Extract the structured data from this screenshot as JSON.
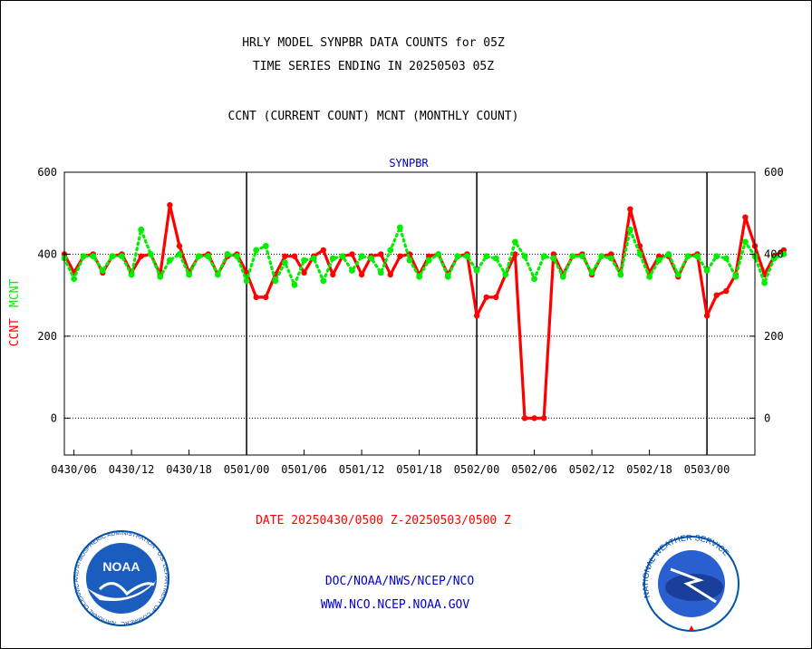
{
  "chart_data": {
    "type": "line",
    "title_lines": [
      "HRLY MODEL SYNPBR DATA COUNTS for 05Z",
      "TIME SERIES ENDING IN 20250503 05Z"
    ],
    "subtitle": "CCNT (CURRENT COUNT) MCNT (MONTHLY COUNT)",
    "panel_label": "SYNPBR",
    "ylabel_parts": [
      {
        "text": "CCNT",
        "color": "#ff0000"
      },
      {
        "text": "MCNT",
        "color": "#00ee00"
      }
    ],
    "xlabel": "DATE 20250430/0500 Z-20250503/0500 Z",
    "x_start": "2025-04-30 05Z",
    "x_end": "2025-05-03 05Z",
    "xlim_hours": [
      0,
      72
    ],
    "ylim": [
      -90,
      600
    ],
    "y_ticks": [
      0,
      200,
      400,
      600
    ],
    "x_tick_labels": [
      "0430/06",
      "0430/12",
      "0430/18",
      "0501/00",
      "0501/06",
      "0501/12",
      "0501/18",
      "0502/00",
      "0502/06",
      "0502/12",
      "0502/18",
      "0503/00"
    ],
    "grid": "dotted horizontal at 0, 200, 400; solid vertical at day boundaries",
    "series": [
      {
        "name": "CCNT",
        "color": "#ff0000",
        "values": [
          400,
          355,
          395,
          400,
          355,
          395,
          400,
          355,
          395,
          400,
          350,
          520,
          420,
          355,
          395,
          400,
          350,
          395,
          400,
          355,
          295,
          295,
          350,
          395,
          395,
          355,
          395,
          410,
          350,
          395,
          400,
          350,
          395,
          400,
          350,
          395,
          400,
          350,
          395,
          400,
          350,
          395,
          400,
          250,
          295,
          295,
          350,
          400,
          0,
          0,
          0,
          400,
          350,
          395,
          400,
          350,
          395,
          400,
          350,
          510,
          420,
          355,
          395,
          395,
          345,
          395,
          400,
          250,
          300,
          310,
          350,
          490,
          420,
          350,
          395,
          410
        ]
      },
      {
        "name": "MCNT",
        "color": "#00ee00",
        "values": [
          390,
          340,
          395,
          395,
          360,
          395,
          395,
          350,
          460,
          400,
          345,
          385,
          400,
          350,
          395,
          395,
          350,
          400,
          395,
          335,
          410,
          420,
          335,
          380,
          325,
          385,
          390,
          335,
          390,
          395,
          360,
          395,
          390,
          355,
          410,
          465,
          385,
          345,
          385,
          400,
          345,
          395,
          395,
          360,
          395,
          390,
          350,
          430,
          395,
          340,
          395,
          390,
          345,
          395,
          395,
          355,
          395,
          390,
          350,
          460,
          400,
          345,
          385,
          400,
          350,
          395,
          395,
          360,
          395,
          390,
          345,
          430,
          395,
          330,
          390,
          400
        ]
      }
    ]
  },
  "footer": {
    "line1": "DOC/NOAA/NWS/NCEP/NCO",
    "line2": "WWW.NCO.NCEP.NOAA.GOV"
  },
  "logos": {
    "noaa": {
      "center_text": "NOAA",
      "ring_text": "NATIONAL OCEANIC AND ATMOSPHERIC ADMINISTRATION · U.S. DEPARTMENT OF COMMERCE"
    },
    "nws": {
      "ring_text": "NATIONAL WEATHER SERVICE"
    }
  }
}
